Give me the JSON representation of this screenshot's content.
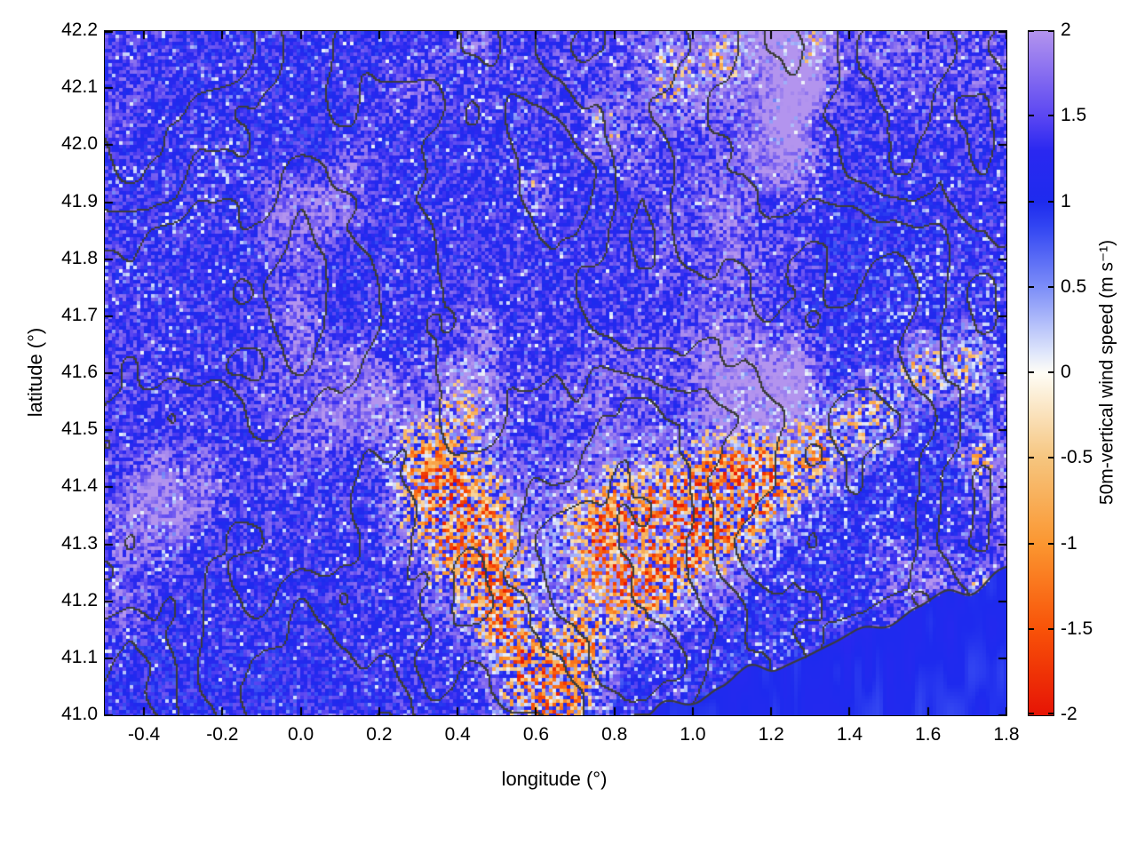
{
  "chart_data": {
    "type": "heatmap",
    "title": "",
    "xlabel": "longitude (°)",
    "ylabel": "latitude (°)",
    "xlim": [
      -0.5,
      1.8
    ],
    "ylim": [
      41.0,
      42.2
    ],
    "grid": false,
    "legend": false,
    "x_ticks": {
      "values": [
        -0.4,
        -0.2,
        0.0,
        0.2,
        0.4,
        0.6,
        0.8,
        1.0,
        1.2,
        1.4,
        1.6,
        1.8
      ],
      "labels": [
        "-0.4",
        "-0.2",
        "0.0",
        "0.2",
        "0.4",
        "0.6",
        "0.8",
        "1.0",
        "1.2",
        "1.4",
        "1.6",
        "1.8"
      ]
    },
    "y_ticks": {
      "values": [
        41.0,
        41.1,
        41.2,
        41.3,
        41.4,
        41.5,
        41.6,
        41.7,
        41.8,
        41.9,
        42.0,
        42.1,
        42.2
      ],
      "labels": [
        "41.0",
        "41.1",
        "41.2",
        "41.3",
        "41.4",
        "41.5",
        "41.6",
        "41.7",
        "41.8",
        "41.9",
        "42.0",
        "42.1",
        "42.2"
      ]
    },
    "colorbar": {
      "label": "50m-vertical wind speed (m s⁻¹)",
      "min": -2,
      "max": 2,
      "ticks": {
        "values": [
          2,
          1.5,
          1,
          0.5,
          0,
          -0.5,
          -1,
          -1.5,
          -2
        ],
        "labels": [
          "2",
          "1.5",
          "1",
          "0.5",
          "0",
          "-0.5",
          "-1",
          "-1.5",
          "-2"
        ]
      },
      "stops": [
        {
          "v": -2.0,
          "c": "#e61405"
        },
        {
          "v": -1.5,
          "c": "#f85208"
        },
        {
          "v": -1.0,
          "c": "#fb9630"
        },
        {
          "v": -0.5,
          "c": "#f6c57e"
        },
        {
          "v": -0.12,
          "c": "#fcefd8"
        },
        {
          "v": 0.0,
          "c": "#fffdf6"
        },
        {
          "v": 0.12,
          "c": "#dfe6fb"
        },
        {
          "v": 0.5,
          "c": "#7d8ef8"
        },
        {
          "v": 0.85,
          "c": "#3346f2"
        },
        {
          "v": 1.0,
          "c": "#1e2bee"
        },
        {
          "v": 1.3,
          "c": "#2a28f0"
        },
        {
          "v": 1.5,
          "c": "#5a46f2"
        },
        {
          "v": 2.0,
          "c": "#b394ee"
        }
      ]
    },
    "field": {
      "description": "Pixelated vertical-wind-speed field: predominantly blue turbulent speckle (≈0.8–1.6 m/s) with lavender high patches (≈1.8–2 m/s, densest in the upper right), scattered near-white low cells (≈0 m/s), and clusters of negative orange/red cells (−0.5 to −2 m/s) along a SW–NE mountain-wave band in the lower centre-right plus small spots near the top edge; terrain contour lines in dark grey; smooth open-sea blue in the bottom-right corner bounded by a coastline contour.",
      "seed": 7,
      "base": 1.25,
      "speckle_amp": 0.9,
      "contour_levels": [
        0.3,
        0.42,
        0.54,
        0.66,
        0.78
      ],
      "contour_color": "#3c3c3c",
      "coastline": [
        [
          0.85,
          41.0
        ],
        [
          1.02,
          41.03
        ],
        [
          1.2,
          41.08
        ],
        [
          1.42,
          41.15
        ],
        [
          1.62,
          41.2
        ],
        [
          1.8,
          41.25
        ]
      ],
      "hotspots": [
        [
          0.38,
          41.38,
          0.09,
          1.0
        ],
        [
          0.46,
          41.29,
          0.07,
          0.9
        ],
        [
          0.52,
          41.17,
          0.06,
          0.9
        ],
        [
          0.58,
          41.07,
          0.05,
          0.9
        ],
        [
          0.66,
          41.01,
          0.06,
          1.0
        ],
        [
          0.72,
          41.12,
          0.05,
          0.8
        ],
        [
          0.8,
          41.3,
          0.09,
          1.35
        ],
        [
          0.9,
          41.26,
          0.06,
          0.9
        ],
        [
          1.0,
          41.35,
          0.08,
          1.1
        ],
        [
          1.1,
          41.38,
          0.07,
          1.0
        ],
        [
          1.2,
          41.42,
          0.06,
          0.85
        ],
        [
          1.32,
          41.47,
          0.05,
          0.75
        ],
        [
          1.45,
          41.52,
          0.05,
          0.7
        ],
        [
          1.58,
          41.6,
          0.04,
          0.7
        ],
        [
          1.7,
          41.62,
          0.04,
          0.7
        ],
        [
          1.73,
          41.45,
          0.04,
          0.65
        ],
        [
          1.74,
          41.2,
          0.04,
          0.6
        ],
        [
          0.42,
          41.55,
          0.05,
          0.5
        ],
        [
          0.3,
          41.45,
          0.05,
          0.5
        ],
        [
          0.95,
          42.12,
          0.05,
          0.6
        ],
        [
          1.08,
          42.16,
          0.05,
          0.6
        ],
        [
          0.78,
          42.03,
          0.04,
          0.5
        ],
        [
          1.3,
          42.18,
          0.04,
          0.55
        ],
        [
          0.6,
          41.93,
          0.03,
          0.4
        ]
      ]
    }
  }
}
